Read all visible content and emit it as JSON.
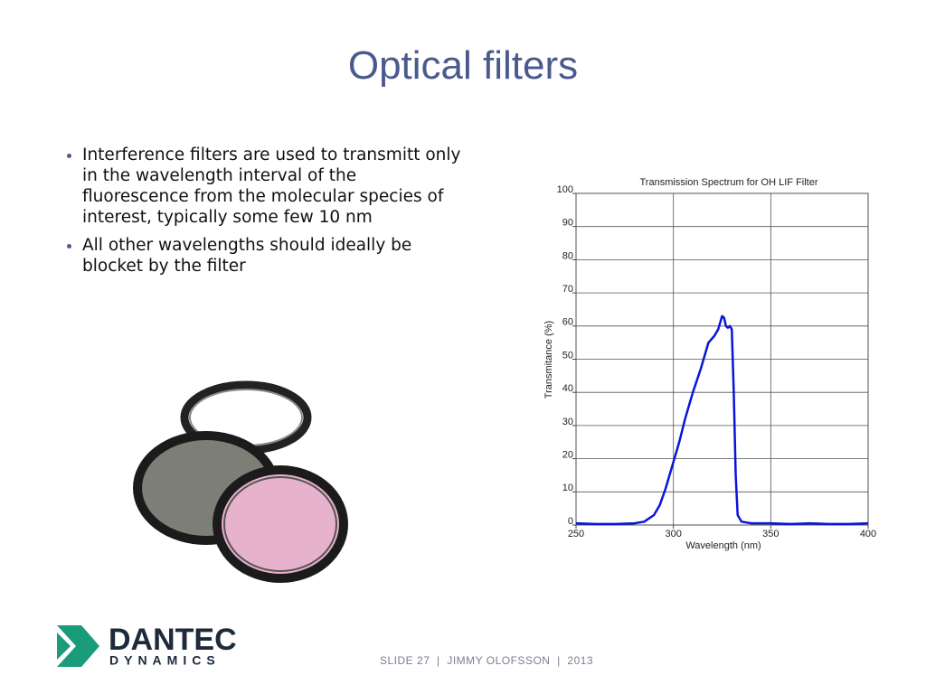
{
  "slide": {
    "title": "Optical filters",
    "bullets": [
      "Interference filters are used to transmitt only in the wavelength interval of the fluorescence from the molecular species of interest, typically some few 10 nm",
      "All other wavelengths should ideally be blocket by the filter"
    ],
    "footer": "SLIDE 27  |  JIMMY OLOFSSON  |  2013",
    "logo": {
      "name": "DANTEC",
      "subname": "DYNAMICS"
    }
  },
  "chart_data": {
    "type": "line",
    "title": "Transmission Spectrum for OH LIF Filter",
    "x_label": "Wavelength (nm)",
    "y_label": "Transmitance (%)",
    "x": [
      250,
      260,
      270,
      280,
      285,
      290,
      293,
      296,
      300,
      303,
      306,
      310,
      314,
      318,
      321,
      323,
      325,
      326,
      327,
      328,
      329,
      330,
      331,
      332,
      333,
      335,
      340,
      350,
      360,
      370,
      380,
      390,
      400
    ],
    "series": [
      {
        "name": "Transmittance",
        "color": "#0a14d8",
        "values": [
          0.5,
          0.3,
          0.3,
          0.5,
          1,
          3,
          6,
          11,
          19,
          25,
          32,
          40,
          47,
          55,
          57,
          59,
          63,
          62.5,
          60,
          59.5,
          60,
          59,
          40,
          15,
          3,
          1,
          0.5,
          0.5,
          0.3,
          0.5,
          0.3,
          0.3,
          0.5
        ]
      }
    ],
    "xlim": [
      250,
      400
    ],
    "xticks": [
      250,
      300,
      350,
      400
    ],
    "ylim": [
      0,
      100
    ],
    "yticks": [
      0,
      10,
      20,
      30,
      40,
      50,
      60,
      70,
      80,
      90,
      100
    ],
    "grid": true
  }
}
